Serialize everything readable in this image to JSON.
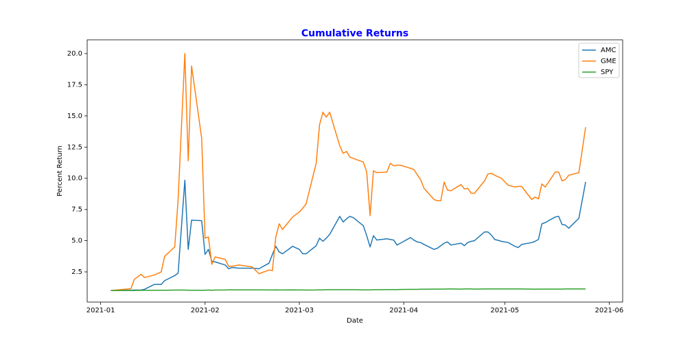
{
  "chart_data": {
    "type": "line",
    "title": "Cumulative Returns",
    "x_label": "Date",
    "y_label": "Percent Return",
    "legend": "upper right",
    "xlim": [
      "2020-12-28",
      "2021-06-05"
    ],
    "xticks": [
      "2021-01",
      "2021-02",
      "2021-03",
      "2021-04",
      "2021-05",
      "2021-06"
    ],
    "ylim": [
      0.08,
      21.1
    ],
    "yticks": [
      2.5,
      {
        "value": 5.0,
        "label": "5.0"
      },
      7.5,
      {
        "value": 10.0,
        "label": "10.0"
      },
      12.5,
      {
        "value": 15.0,
        "label": "15.0"
      },
      17.5,
      {
        "value": 20.0,
        "label": "20.0"
      }
    ],
    "x": [
      "2021-01-04",
      "2021-01-10",
      "2021-01-11",
      "2021-01-13",
      "2021-01-14",
      "2021-01-17",
      "2021-01-19",
      "2021-01-20",
      "2021-01-23",
      "2021-01-24",
      "2021-01-26",
      "2021-01-27",
      "2021-01-28",
      "2021-01-31",
      "2021-02-01",
      "2021-02-02",
      "2021-02-03",
      "2021-02-04",
      "2021-02-07",
      "2021-02-08",
      "2021-02-09",
      "2021-02-11",
      "2021-02-15",
      "2021-02-17",
      "2021-02-20",
      "2021-02-21",
      "2021-02-22",
      "2021-02-23",
      "2021-02-24",
      "2021-02-27",
      "2021-03-01",
      "2021-03-02",
      "2021-03-03",
      "2021-03-06",
      "2021-03-07",
      "2021-03-08",
      "2021-03-09",
      "2021-03-10",
      "2021-03-13",
      "2021-03-14",
      "2021-03-15",
      "2021-03-16",
      "2021-03-17",
      "2021-03-20",
      "2021-03-21",
      "2021-03-22",
      "2021-03-23",
      "2021-03-24",
      "2021-03-27",
      "2021-03-28",
      "2021-03-29",
      "2021-03-30",
      "2021-03-31",
      "2021-04-03",
      "2021-04-04",
      "2021-04-05",
      "2021-04-06",
      "2021-04-07",
      "2021-04-10",
      "2021-04-11",
      "2021-04-12",
      "2021-04-13",
      "2021-04-14",
      "2021-04-15",
      "2021-04-18",
      "2021-04-19",
      "2021-04-20",
      "2021-04-21",
      "2021-04-22",
      "2021-04-25",
      "2021-04-26",
      "2021-04-27",
      "2021-04-28",
      "2021-04-30",
      "2021-05-02",
      "2021-05-04",
      "2021-05-05",
      "2021-05-06",
      "2021-05-09",
      "2021-05-10",
      "2021-05-11",
      "2021-05-12",
      "2021-05-13",
      "2021-05-16",
      "2021-05-17",
      "2021-05-18",
      "2021-05-19",
      "2021-05-20",
      "2021-05-23",
      "2021-05-25"
    ],
    "series": [
      {
        "name": "AMC",
        "color": "#1f77b4",
        "values": [
          1.0,
          1.03,
          1.04,
          1.05,
          1.1,
          1.5,
          1.5,
          1.8,
          2.2,
          2.4,
          9.85,
          4.3,
          6.65,
          6.6,
          3.9,
          4.3,
          3.35,
          3.3,
          3.05,
          2.75,
          2.85,
          2.8,
          2.8,
          2.75,
          3.2,
          3.9,
          4.55,
          4.1,
          3.95,
          4.55,
          4.3,
          3.95,
          3.95,
          4.6,
          5.2,
          4.95,
          5.2,
          5.5,
          6.95,
          6.5,
          6.75,
          6.95,
          6.85,
          6.2,
          5.4,
          4.5,
          5.4,
          5.05,
          5.15,
          5.1,
          5.05,
          4.65,
          4.8,
          5.25,
          5.05,
          4.9,
          4.85,
          4.7,
          4.3,
          4.4,
          4.6,
          4.8,
          4.9,
          4.65,
          4.8,
          4.6,
          4.85,
          4.95,
          5.0,
          5.7,
          5.7,
          5.45,
          5.1,
          4.95,
          4.85,
          4.55,
          4.45,
          4.7,
          4.85,
          4.95,
          5.1,
          6.35,
          6.45,
          6.9,
          6.95,
          6.3,
          6.25,
          6.0,
          6.8,
          9.7
        ]
      },
      {
        "name": "GME",
        "color": "#ff7f0e",
        "values": [
          1.0,
          1.15,
          1.9,
          2.3,
          2.05,
          2.25,
          2.5,
          3.75,
          4.5,
          8.3,
          20.0,
          11.4,
          19.0,
          13.2,
          5.2,
          5.3,
          3.1,
          3.7,
          3.5,
          2.95,
          2.95,
          3.05,
          2.9,
          2.35,
          2.65,
          2.6,
          5.3,
          6.35,
          5.9,
          6.9,
          7.3,
          7.6,
          7.95,
          11.2,
          14.3,
          15.3,
          14.9,
          15.3,
          12.6,
          12.0,
          12.15,
          11.7,
          11.6,
          11.3,
          10.5,
          7.0,
          10.6,
          10.45,
          10.5,
          11.2,
          11.0,
          11.05,
          11.05,
          10.8,
          10.7,
          10.3,
          9.9,
          9.2,
          8.3,
          8.2,
          8.2,
          9.7,
          9.05,
          9.0,
          9.5,
          9.15,
          9.2,
          8.8,
          8.8,
          9.8,
          10.35,
          10.4,
          10.25,
          10.0,
          9.45,
          9.3,
          9.35,
          9.35,
          8.3,
          8.5,
          8.35,
          9.55,
          9.3,
          10.5,
          10.5,
          9.8,
          9.9,
          10.25,
          10.45,
          14.1
        ]
      },
      {
        "name": "SPY",
        "color": "#2ca02c",
        "values": [
          1.0,
          1.01,
          1.01,
          1.02,
          1.02,
          1.02,
          1.03,
          1.03,
          1.04,
          1.04,
          1.04,
          1.03,
          1.03,
          1.02,
          1.03,
          1.04,
          1.03,
          1.04,
          1.05,
          1.06,
          1.06,
          1.06,
          1.06,
          1.06,
          1.05,
          1.05,
          1.06,
          1.05,
          1.05,
          1.06,
          1.05,
          1.05,
          1.04,
          1.05,
          1.06,
          1.06,
          1.07,
          1.07,
          1.07,
          1.07,
          1.07,
          1.07,
          1.07,
          1.06,
          1.06,
          1.06,
          1.07,
          1.07,
          1.08,
          1.08,
          1.08,
          1.08,
          1.09,
          1.1,
          1.1,
          1.1,
          1.11,
          1.11,
          1.12,
          1.12,
          1.12,
          1.12,
          1.13,
          1.13,
          1.12,
          1.13,
          1.13,
          1.13,
          1.12,
          1.13,
          1.13,
          1.13,
          1.13,
          1.13,
          1.13,
          1.13,
          1.13,
          1.13,
          1.12,
          1.11,
          1.12,
          1.12,
          1.12,
          1.12,
          1.12,
          1.12,
          1.13,
          1.13,
          1.13,
          1.13
        ]
      }
    ]
  }
}
